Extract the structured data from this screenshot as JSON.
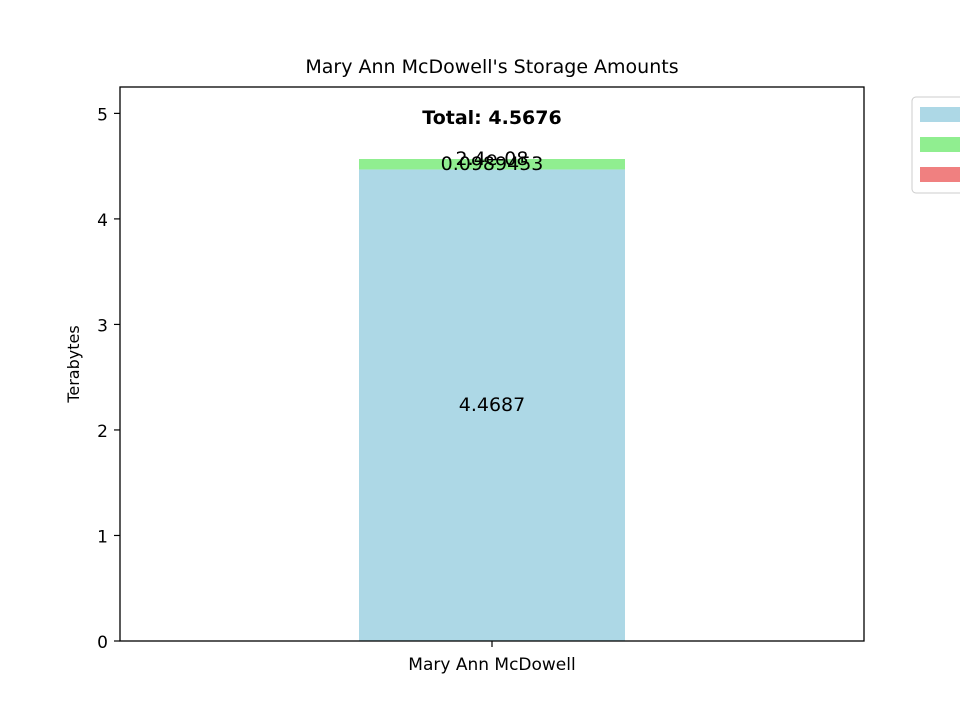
{
  "chart_data": {
    "type": "bar",
    "stacked": true,
    "title": "Mary Ann McDowell's Storage Amounts",
    "xlabel": "",
    "ylabel": "Terabytes",
    "ylim": [
      0,
      5.25
    ],
    "yticks": [
      0,
      1,
      2,
      3,
      4,
      5
    ],
    "categories": [
      "Mary Ann McDowell"
    ],
    "series": [
      {
        "values": [
          4.4687
        ],
        "label": "4.4687",
        "color": "#add8e6"
      },
      {
        "values": [
          0.0989453
        ],
        "label": "0.0989453",
        "color": "#90ee90"
      },
      {
        "values": [
          2.4e-08
        ],
        "label": "2.4e-08",
        "color": "#f08080"
      }
    ],
    "total_label": "Total: 4.5676",
    "grid": false,
    "legend_position": "outside-top-right"
  }
}
